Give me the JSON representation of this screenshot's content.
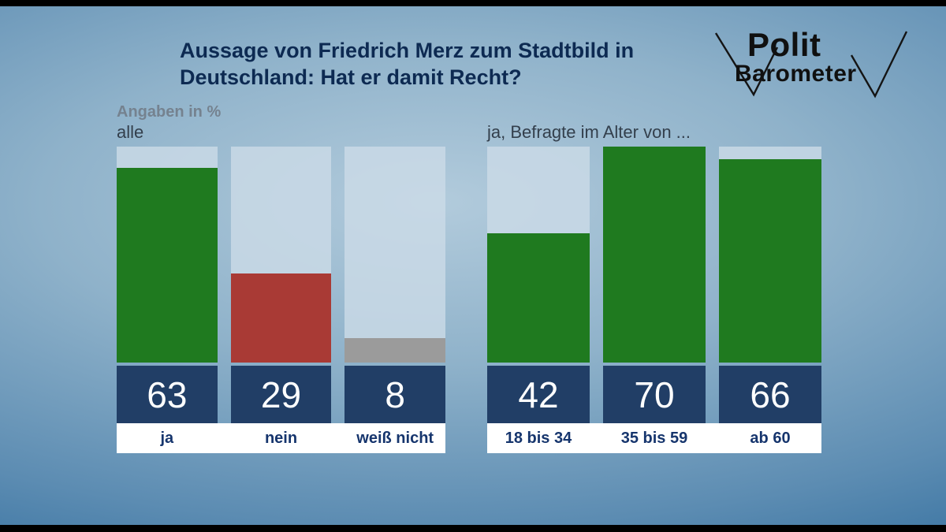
{
  "title": {
    "line1": "Aussage von Friedrich Merz zum Stadtbild in",
    "line2": "Deutschland: Hat er damit Recht?"
  },
  "units_label": "Angaben in %",
  "logo": {
    "top": "Polit",
    "bottom": "Barometer"
  },
  "colors": {
    "green": "#1f7a1f",
    "red": "#a93a35",
    "gray": "#9b9b9b",
    "navy_band": "#213e66",
    "label_blue": "#16356d",
    "title_navy": "#0d2a52"
  },
  "chart_data": [
    {
      "type": "bar",
      "title": "alle",
      "categories": [
        "ja",
        "nein",
        "weiß nicht"
      ],
      "values": [
        63,
        29,
        8
      ],
      "bar_colors": [
        "#1f7a1f",
        "#a93a35",
        "#9b9b9b"
      ],
      "ylim": [
        0,
        70
      ],
      "grid": false,
      "legend": "none",
      "value_labels": "band-below-bars"
    },
    {
      "type": "bar",
      "title": "ja, Befragte im Alter von ...",
      "categories": [
        "18 bis 34",
        "35 bis 59",
        "ab 60"
      ],
      "values": [
        42,
        70,
        66
      ],
      "bar_colors": [
        "#1f7a1f",
        "#1f7a1f",
        "#1f7a1f"
      ],
      "ylim": [
        0,
        70
      ],
      "grid": false,
      "legend": "none",
      "value_labels": "band-below-bars"
    }
  ]
}
